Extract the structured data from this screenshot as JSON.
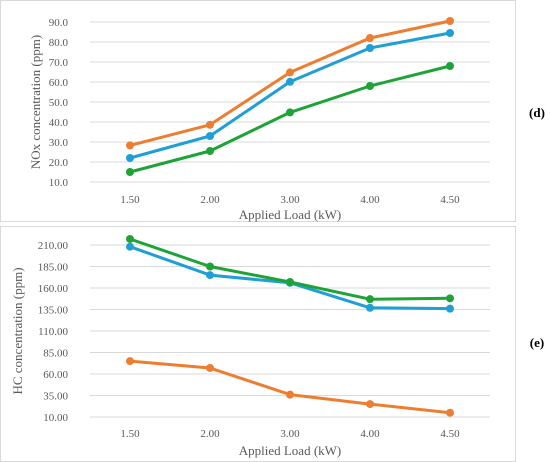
{
  "chart_data": [
    {
      "type": "line",
      "panel_label": "(d)",
      "xlabel": "Applied Load (kW)",
      "ylabel": "NOx concentration (ppm)",
      "categories": [
        "1.50",
        "2.00",
        "3.00",
        "4.00",
        "4.50"
      ],
      "y_ticks": [
        "10.0",
        "20.0",
        "30.0",
        "40.0",
        "50.0",
        "60.0",
        "70.0",
        "80.0",
        "90.0"
      ],
      "ylim": [
        10,
        90
      ],
      "grid": "horizontal",
      "series": [
        {
          "color": "#ed7d31",
          "values": [
            28.3,
            38.6,
            64.8,
            82.0,
            90.5
          ]
        },
        {
          "color": "#1f9fd5",
          "values": [
            22.0,
            33.0,
            60.1,
            77.0,
            84.5
          ]
        },
        {
          "color": "#1ea336",
          "values": [
            15.0,
            25.5,
            44.8,
            58.0,
            68.0
          ]
        }
      ]
    },
    {
      "type": "line",
      "panel_label": "(e)",
      "xlabel": "Applied Load (kW)",
      "ylabel": "HC concentration (ppm)",
      "categories": [
        "1.50",
        "2.00",
        "3.00",
        "4.00",
        "4.50"
      ],
      "y_ticks": [
        "10.00",
        "35.00",
        "60.00",
        "85.00",
        "110.00",
        "135.00",
        "160.00",
        "185.00",
        "210.00"
      ],
      "ylim": [
        10,
        210
      ],
      "grid": "horizontal",
      "series": [
        {
          "color": "#ed7d31",
          "values": [
            75.0,
            67.0,
            36.0,
            25.0,
            15.0
          ]
        },
        {
          "color": "#1f9fd5",
          "values": [
            208.0,
            175.0,
            166.0,
            137.0,
            136.0
          ]
        },
        {
          "color": "#1ea336",
          "values": [
            217.0,
            185.0,
            167.0,
            147.0,
            148.0
          ]
        }
      ]
    }
  ]
}
